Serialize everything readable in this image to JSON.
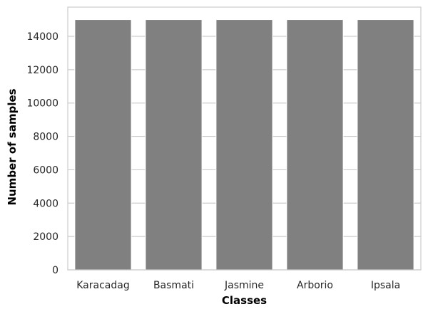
{
  "chart_data": {
    "type": "bar",
    "title": "",
    "xlabel": "Classes",
    "ylabel": "Number of samples",
    "categories": [
      "Karacadag",
      "Basmati",
      "Jasmine",
      "Arborio",
      "Ipsala"
    ],
    "values": [
      15000,
      15000,
      15000,
      15000,
      15000
    ],
    "ylim": [
      0,
      15750
    ],
    "yticks": [
      0,
      2000,
      4000,
      6000,
      8000,
      10000,
      12000,
      14000
    ],
    "grid": "horizontal",
    "bar_color": "#808080",
    "grid_color": "#cccccc",
    "frame_color": "#cccccc"
  }
}
